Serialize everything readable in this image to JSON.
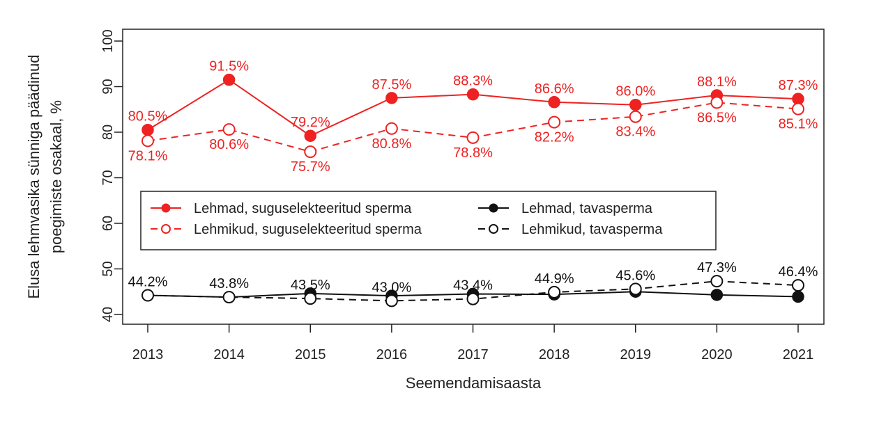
{
  "chart_data": {
    "type": "line",
    "title": "",
    "xlabel": "Seemendamisaasta",
    "ylabel_lines": [
      "Elusa lehmvasika sünniga päädinud",
      "poegimiste osakaal, %"
    ],
    "x": [
      "2013",
      "2014",
      "2015",
      "2016",
      "2017",
      "2018",
      "2019",
      "2020",
      "2021"
    ],
    "yticks": [
      "40",
      "50",
      "60",
      "70",
      "80",
      "90",
      "100"
    ],
    "ylim": [
      40,
      100
    ],
    "grid": false,
    "legend_position": "center-left",
    "series": [
      {
        "name": "Lehmad, suguselekteeritud sperma",
        "color": "#ee2222",
        "line_style": "solid",
        "marker": "filled-circle",
        "values": [
          80.5,
          91.5,
          79.2,
          87.5,
          88.3,
          86.6,
          86.0,
          88.1,
          87.3
        ],
        "labels": [
          "80.5%",
          "91.5%",
          "79.2%",
          "87.5%",
          "88.3%",
          "86.6%",
          "86.0%",
          "88.1%",
          "87.3%"
        ],
        "label_position": "above"
      },
      {
        "name": "Lehmikud, suguselekteeritud sperma",
        "color": "#ee2222",
        "line_style": "dashed",
        "marker": "open-circle",
        "values": [
          78.1,
          80.6,
          75.7,
          80.8,
          78.8,
          82.2,
          83.4,
          86.5,
          85.1
        ],
        "labels": [
          "78.1%",
          "80.6%",
          "75.7%",
          "80.8%",
          "78.8%",
          "82.2%",
          "83.4%",
          "86.5%",
          "85.1%"
        ],
        "label_position": "below"
      },
      {
        "name": "Lehmad, tavasperma",
        "color": "#111111",
        "line_style": "solid",
        "marker": "filled-circle",
        "values": [
          44.2,
          43.8,
          44.6,
          44.1,
          44.5,
          44.4,
          45.0,
          44.3,
          43.9
        ],
        "labels": [],
        "label_position": "none"
      },
      {
        "name": "Lehmikud, tavasperma",
        "color": "#111111",
        "line_style": "dashed",
        "marker": "open-circle",
        "values": [
          44.2,
          43.8,
          43.5,
          43.0,
          43.4,
          44.9,
          45.6,
          47.3,
          46.4
        ],
        "labels": [
          "44.2%",
          "43.8%",
          "43.5%",
          "43.0%",
          "43.4%",
          "44.9%",
          "45.6%",
          "47.3%",
          "46.4%"
        ],
        "label_position": "above"
      }
    ],
    "legend_order": [
      0,
      2,
      1,
      3
    ]
  }
}
